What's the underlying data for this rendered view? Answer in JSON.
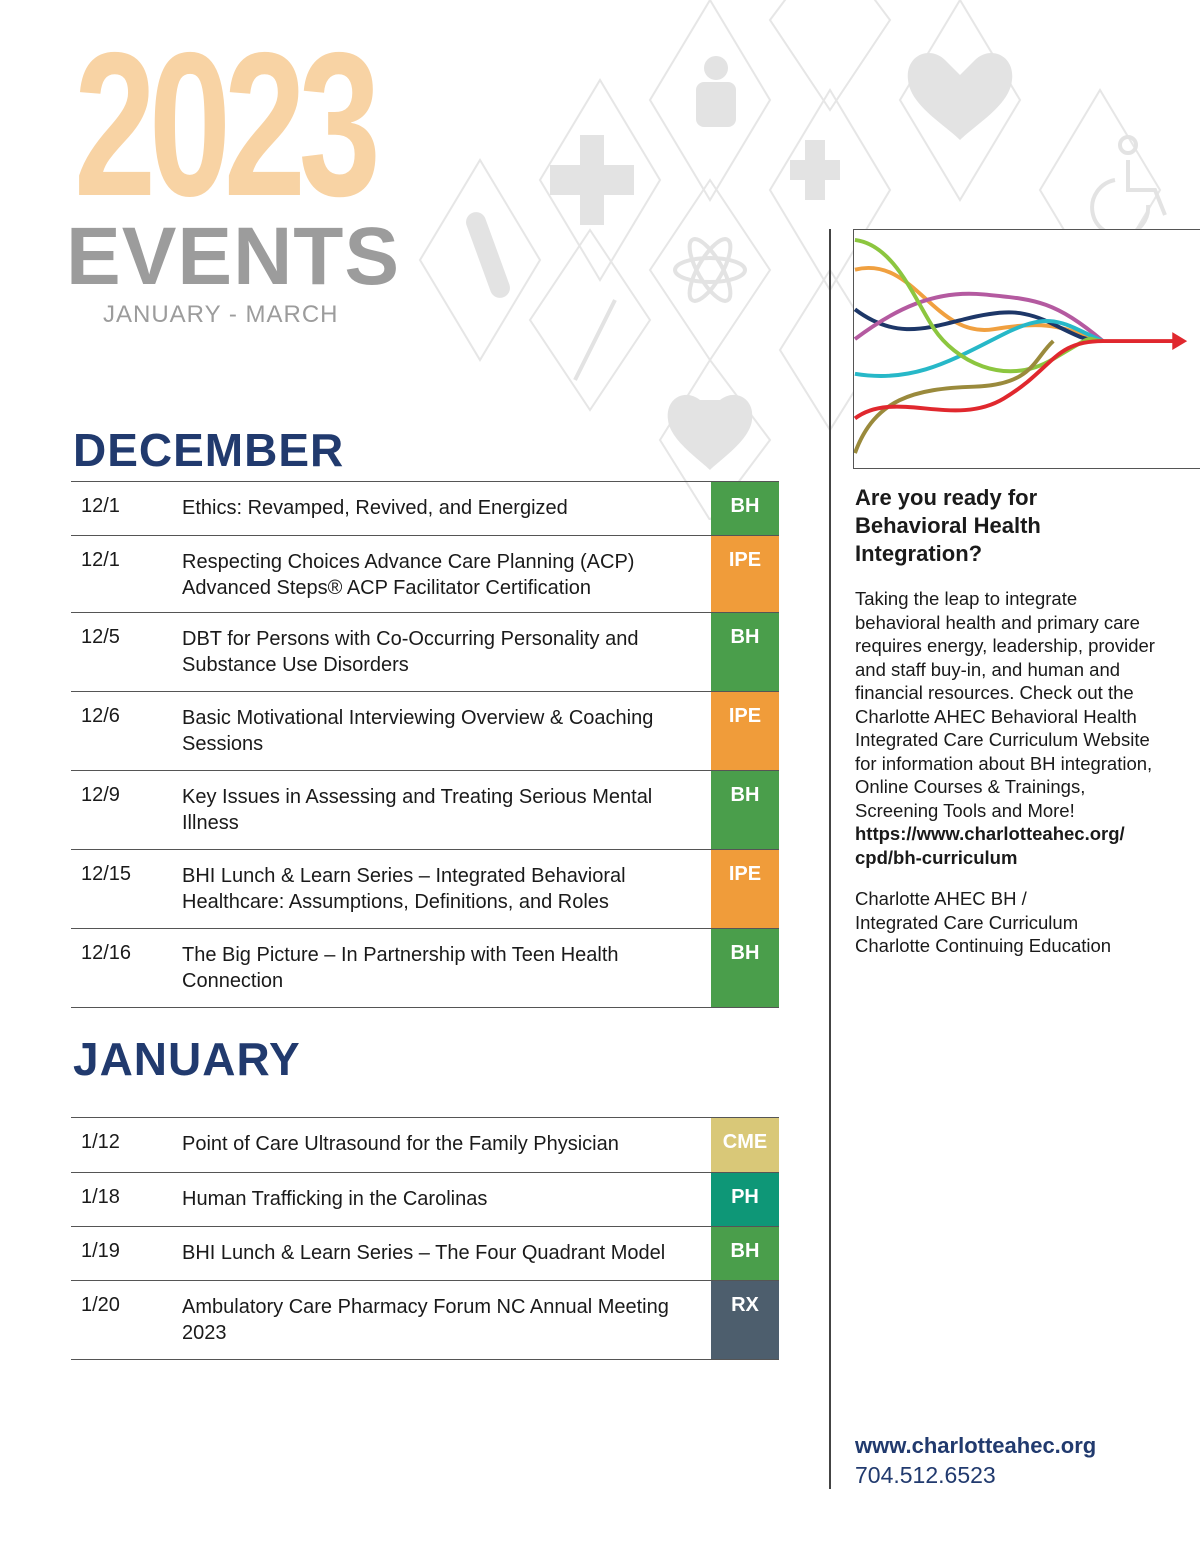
{
  "header": {
    "year": "2023",
    "title": "EVENTS",
    "range": "JANUARY - MARCH"
  },
  "tag_colors": {
    "BH": "#4a9e4b",
    "IPE": "#f09c3a",
    "CME": "#d9c878",
    "PH": "#0e9777",
    "RX": "#4d5e6d"
  },
  "months": [
    {
      "name": "DECEMBER",
      "events": [
        {
          "date": "12/1",
          "title": "Ethics: Revamped, Revived, and Energized",
          "tag": "BH"
        },
        {
          "date": "12/1",
          "title": "Respecting Choices Advance Care Planning (ACP) Advanced Steps® ACP Facilitator Certification",
          "tag": "IPE"
        },
        {
          "date": "12/5",
          "title": "DBT for Persons with Co-Occurring Personality and Substance Use Disorders",
          "tag": "BH"
        },
        {
          "date": "12/6",
          "title": "Basic Motivational Interviewing Overview & Coaching Sessions",
          "tag": "IPE"
        },
        {
          "date": "12/9",
          "title": "Key Issues in Assessing and Treating Serious Mental Illness",
          "tag": "BH"
        },
        {
          "date": "12/15",
          "title": "BHI Lunch & Learn Series – Integrated Behavioral Healthcare: Assumptions, Definitions, and Roles",
          "tag": "IPE"
        },
        {
          "date": "12/16",
          "title": "The Big Picture – In Partnership with Teen Health Connection",
          "tag": "BH"
        }
      ]
    },
    {
      "name": "JANUARY",
      "events": [
        {
          "date": "1/12",
          "title": "Point of Care Ultrasound for the Family Physician",
          "tag": "CME"
        },
        {
          "date": "1/18",
          "title": "Human Trafficking in the Carolinas",
          "tag": "PH"
        },
        {
          "date": "1/19",
          "title": "BHI Lunch & Learn Series – The Four Quadrant Model",
          "tag": "BH"
        },
        {
          "date": "1/20",
          "title": "Ambulatory Care Pharmacy Forum NC Annual Meeting 2023",
          "tag": "RX"
        }
      ]
    }
  ],
  "sidebar": {
    "heading": "Are you ready for Behavioral Health Integration?",
    "body": "Taking the leap to integrate behavioral health and primary care requires energy, leadership, provider and staff buy-in, and human and financial resources. Check out the Charlotte AHEC Behavioral Health Integrated Care Curriculum Website for information about BH integration, Online Courses & Trainings, Screening Tools and More!",
    "link": "https://www.charlotteahec.org/ cpd/bh-curriculum",
    "credit_1": "Charlotte AHEC BH /",
    "credit_2": "Integrated Care Curriculum",
    "credit_3": "Charlotte Continuing Education",
    "website": "www.charlotteahec.org",
    "phone": "704.512.6523"
  }
}
